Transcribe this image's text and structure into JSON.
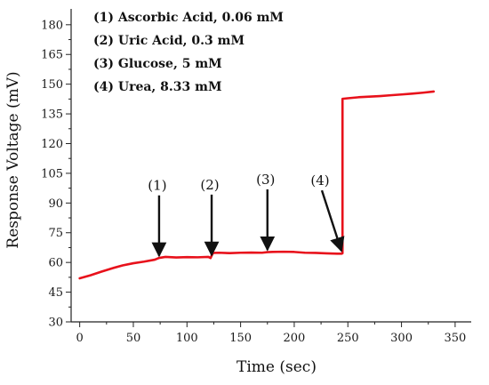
{
  "chart_data": {
    "type": "line",
    "xlabel": "Time (sec)",
    "ylabel": "Response Voltage (mV)",
    "xlim": [
      -8,
      365
    ],
    "ylim": [
      30,
      188
    ],
    "xticks": [
      0,
      50,
      100,
      150,
      200,
      250,
      300,
      350
    ],
    "yticks": [
      30,
      45,
      60,
      75,
      90,
      105,
      120,
      135,
      150,
      165,
      180
    ],
    "grid": false,
    "legend_position": "top-left",
    "series": [
      {
        "color": "#e8111b",
        "x": [
          0,
          10,
          20,
          30,
          40,
          50,
          60,
          70,
          74,
          80,
          90,
          100,
          110,
          120,
          122,
          123,
          124,
          125,
          130,
          140,
          150,
          160,
          170,
          175,
          180,
          190,
          200,
          210,
          220,
          230,
          240,
          244,
          245,
          245,
          250,
          260,
          270,
          280,
          290,
          300,
          310,
          320,
          330
        ],
        "y": [
          52.0,
          53.5,
          55.3,
          57.0,
          58.5,
          59.6,
          60.4,
          61.4,
          62.3,
          62.8,
          62.5,
          62.7,
          62.6,
          62.8,
          62.2,
          63.4,
          64.6,
          64.8,
          64.9,
          64.7,
          64.9,
          65.0,
          64.9,
          65.2,
          65.3,
          65.4,
          65.3,
          64.9,
          64.8,
          64.6,
          64.4,
          64.4,
          64.6,
          142.6,
          142.9,
          143.4,
          143.7,
          144.0,
          144.4,
          144.8,
          145.2,
          145.7,
          146.3
        ]
      }
    ],
    "legend_items": [
      {
        "text": "(1) Ascorbic Acid, 0.06 mM"
      },
      {
        "text": "(2) Uric Acid, 0.3 mM"
      },
      {
        "text": "(3) Glucose, 5 mM"
      },
      {
        "text": "(4) Urea, 8.33 mM"
      }
    ],
    "annotations": [
      {
        "text": "(1)",
        "x": 74,
        "y": 62.0
      },
      {
        "text": "(2)",
        "x": 123,
        "y": 62.4
      },
      {
        "text": "(3)",
        "x": 175,
        "y": 65.0
      },
      {
        "text": "(4)",
        "x": 244,
        "y": 64.5
      }
    ]
  }
}
